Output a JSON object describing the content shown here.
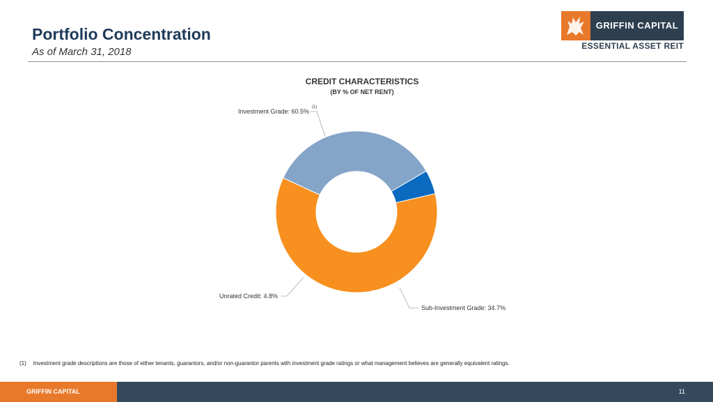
{
  "header": {
    "title": "Portfolio Concentration",
    "subtitle": "As of March 31, 2018"
  },
  "logo": {
    "name": "GRIFFIN CAPITAL",
    "tagline": "ESSENTIAL ASSET REIT",
    "mark_icon": "griffin-icon",
    "colors": {
      "orange": "#e8792b",
      "navy": "#2e3f50"
    }
  },
  "chart_data": {
    "type": "pie",
    "title": "CREDIT CHARACTERISTICS",
    "subtitle": "(BY % OF NET RENT)",
    "donut": true,
    "start_angle_deg": 77,
    "series": [
      {
        "name": "Investment Grade",
        "label": "Investment Grade: 60.5%",
        "value": 60.5,
        "color": "#f7901e",
        "footnote_ref": "(1)"
      },
      {
        "name": "Sub-Investment Grade",
        "label": "Sub-Investment Grade: 34.7%",
        "value": 34.7,
        "color": "#84a4c8"
      },
      {
        "name": "Unrated Credit",
        "label": "Unrated Credit: 4.8%",
        "value": 4.8,
        "color": "#0a6abf"
      }
    ]
  },
  "footnote": {
    "number": "(1)",
    "text": "Investment grade descriptions are those of either tenants, guarantors, and/or non-guarantor parents with investment grade ratings or what management believes are generally equivalent ratings."
  },
  "footer": {
    "brand": "GRIFFIN CAPITAL",
    "page_number": "11"
  }
}
